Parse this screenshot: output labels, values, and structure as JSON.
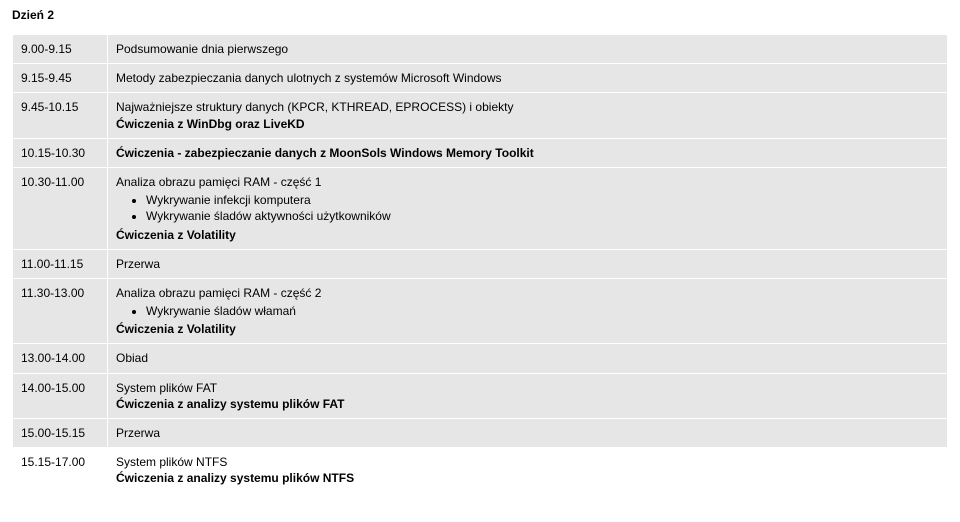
{
  "title": "Dzień 2",
  "rows": [
    {
      "time": "9.00-9.15",
      "lines": [
        {
          "text": "Podsumowanie dnia pierwszego",
          "bold": false
        }
      ],
      "bullets": [],
      "no_bg": false
    },
    {
      "time": "9.15-9.45",
      "lines": [
        {
          "text": "Metody zabezpieczania danych ulotnych z systemów Microsoft Windows",
          "bold": false
        }
      ],
      "bullets": [],
      "no_bg": false
    },
    {
      "time": "9.45-10.15",
      "lines": [
        {
          "text": "Najważniejsze  struktury danych (KPCR, KTHREAD, EPROCESS) i obiekty",
          "bold": false
        },
        {
          "text": "Ćwiczenia z WinDbg oraz LiveKD",
          "bold": true
        }
      ],
      "bullets": [],
      "no_bg": false
    },
    {
      "time": "10.15-10.30",
      "lines": [
        {
          "text": "Ćwiczenia - zabezpieczanie danych z MoonSols Windows Memory Toolkit",
          "bold": true
        }
      ],
      "bullets": [],
      "no_bg": false
    },
    {
      "time": "10.30-11.00",
      "lines": [
        {
          "text": "Analiza obrazu pamięci RAM - część 1",
          "bold": false
        }
      ],
      "bullets": [
        "Wykrywanie infekcji komputera",
        "Wykrywanie śladów aktywności użytkowników"
      ],
      "after_lines": [
        {
          "text": "Ćwiczenia z Volatility",
          "bold": true
        }
      ],
      "no_bg": false
    },
    {
      "time": "11.00-11.15",
      "lines": [
        {
          "text": "Przerwa",
          "bold": false
        }
      ],
      "bullets": [],
      "no_bg": false
    },
    {
      "time": "11.30-13.00",
      "lines": [
        {
          "text": "Analiza obrazu pamięci RAM - część 2",
          "bold": false
        }
      ],
      "bullets": [
        "Wykrywanie śladów włamań"
      ],
      "after_lines": [
        {
          "text": "Ćwiczenia z Volatility",
          "bold": true
        }
      ],
      "no_bg": false
    },
    {
      "time": "13.00-14.00",
      "lines": [
        {
          "text": "Obiad",
          "bold": false
        }
      ],
      "bullets": [],
      "no_bg": false
    },
    {
      "time": "14.00-15.00",
      "lines": [
        {
          "text": "System plików FAT",
          "bold": false
        },
        {
          "text": "Ćwiczenia z analizy systemu plików FAT",
          "bold": true
        }
      ],
      "bullets": [],
      "no_bg": false
    },
    {
      "time": "15.00-15.15",
      "lines": [
        {
          "text": "Przerwa",
          "bold": false
        }
      ],
      "bullets": [],
      "no_bg": false
    },
    {
      "time": "15.15-17.00",
      "lines": [
        {
          "text": "System plików NTFS",
          "bold": false
        },
        {
          "text": "Ćwiczenia z analizy systemu plików NTFS",
          "bold": true
        }
      ],
      "bullets": [],
      "no_bg": true
    }
  ]
}
